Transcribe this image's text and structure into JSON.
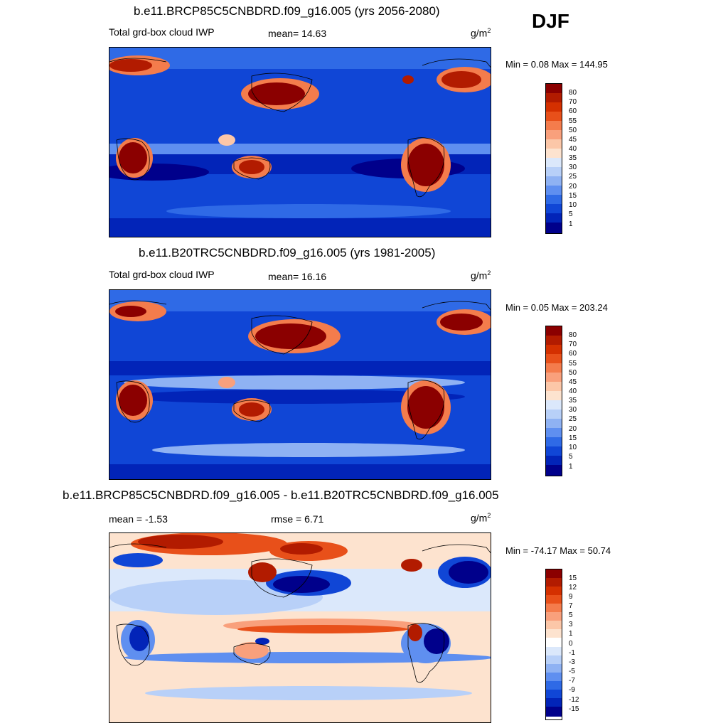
{
  "season": "DJF",
  "panels": [
    {
      "title": "b.e11.BRCP85C5CNBDRD.f09_g16.005 (yrs 2056-2080)",
      "left_label": "Total grd-box cloud IWP",
      "center_label": "mean=  14.63",
      "units_base": "g/m",
      "units_exp": "2",
      "minmax": "Min =   0.08 Max = 144.95",
      "ticks": [
        "80",
        "70",
        "60",
        "55",
        "50",
        "45",
        "40",
        "35",
        "30",
        "25",
        "20",
        "15",
        "10",
        "5",
        "1"
      ]
    },
    {
      "title": "b.e11.B20TRC5CNBDRD.f09_g16.005 (yrs 1981-2005)",
      "left_label": "Total grd-box cloud IWP",
      "center_label": "mean=  16.16",
      "units_base": "g/m",
      "units_exp": "2",
      "minmax": "Min =   0.05 Max = 203.24",
      "ticks": [
        "80",
        "70",
        "60",
        "55",
        "50",
        "45",
        "40",
        "35",
        "30",
        "25",
        "20",
        "15",
        "10",
        "5",
        "1"
      ]
    },
    {
      "title": "b.e11.BRCP85C5CNBDRD.f09_g16.005 - b.e11.B20TRC5CNBDRD.f09_g16.005",
      "left_label": "mean =  -1.53",
      "center_label": "rmse =   6.71",
      "units_base": "g/m",
      "units_exp": "2",
      "minmax": "Min = -74.17 Max =  50.74",
      "ticks": [
        "15",
        "12",
        "9",
        "7",
        "5",
        "3",
        "1",
        "0",
        "-1",
        "-3",
        "-5",
        "-7",
        "-9",
        "-12",
        "-15"
      ]
    }
  ],
  "colors": {
    "abs_scale": [
      "#8b0000",
      "#b21b00",
      "#d43000",
      "#e8501a",
      "#f47c4c",
      "#f9a07c",
      "#fcc7a8",
      "#fde3cf",
      "#dbe8fb",
      "#b8d0f8",
      "#8fb2f3",
      "#5f8ff0",
      "#2f6ae6",
      "#1046d6",
      "#0224b8",
      "#00008b"
    ],
    "diff_scale": [
      "#8b0000",
      "#b21b00",
      "#d43000",
      "#e8501a",
      "#f47c4c",
      "#f9a07c",
      "#fcc7a8",
      "#fde3cf",
      "#ffffff",
      "#dbe8fb",
      "#b8d0f8",
      "#8fb2f3",
      "#5f8ff0",
      "#2f6ae6",
      "#1046d6",
      "#0224b8",
      "#00008b"
    ]
  }
}
